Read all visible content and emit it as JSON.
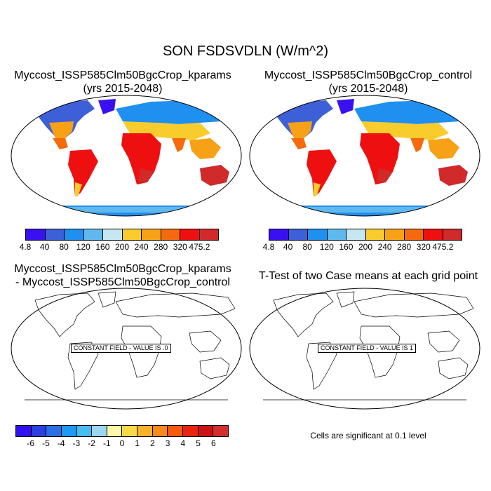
{
  "title": "SON FSDSVDLN (W/m^2)",
  "panels": {
    "top_left": {
      "title_line1": "Myccost_ISSP585Clm50BgcCrop_kparams",
      "title_line2": "(yrs 2015-2048)"
    },
    "top_right": {
      "title_line1": "Myccost_ISSP585Clm50BgcCrop_control",
      "title_line2": "(yrs 2015-2048)"
    },
    "bottom_left": {
      "title_line1": "Myccost_ISSP585Clm50BgcCrop_kparams",
      "title_line2": "- Myccost_ISSP585Clm50BgcCrop_control",
      "constant_label": "CONSTANT FIELD - VALUE IS .0"
    },
    "bottom_right": {
      "title_line1": "T-Test of two Case means at each grid point",
      "constant_label": "CONSTANT FIELD - VALUE IS 1",
      "note": "Cells are significant at 0.1 level"
    }
  },
  "colorbar_abs": {
    "colors": [
      "#3a10f0",
      "#3d5fd8",
      "#1f8ff0",
      "#5fb8ee",
      "#c6e6f2",
      "#f8cc2c",
      "#f6a116",
      "#f46a0c",
      "#ee1010",
      "#d02a2a"
    ],
    "labels": [
      "4.8",
      "40",
      "80",
      "120",
      "160",
      "200",
      "240",
      "280",
      "320",
      "475.2"
    ]
  },
  "colorbar_diff": {
    "colors": [
      "#3210f0",
      "#2a40e0",
      "#2c6ee6",
      "#1e9af2",
      "#44bdf0",
      "#9cd6f2",
      "#fff8a8",
      "#f8da46",
      "#f8b22c",
      "#f68a1a",
      "#f45a10",
      "#ea2410",
      "#cc1414",
      "#d23030"
    ],
    "labels": [
      "-6",
      "-5",
      "-4",
      "-3",
      "-2",
      "-1",
      "0",
      "1",
      "2",
      "3",
      "4",
      "5",
      "6"
    ]
  }
}
